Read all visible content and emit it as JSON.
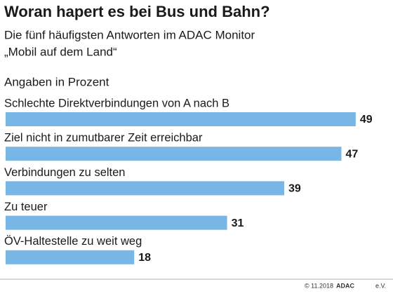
{
  "chart_data": {
    "type": "bar",
    "orientation": "horizontal",
    "title": "Woran hapert es bei Bus und Bahn?",
    "subtitle": [
      "Die fünf häufigsten Antworten im ADAC Monitor",
      "„Mobil auf dem Land“"
    ],
    "unit_note": "Angaben in Prozent",
    "categories": [
      "Schlechte Direktverbindungen von A nach B",
      "Ziel nicht in zumutbarer Zeit erreichbar",
      "Verbindungen zu selten",
      "Zu teuer",
      "ÖV-Haltestelle zu weit weg"
    ],
    "values": [
      49,
      47,
      39,
      31,
      18
    ],
    "color": "#78b6e6",
    "footer": {
      "date": "© 11.2018",
      "publisher": "ADAC",
      "publisher_suffix": "e.V."
    }
  }
}
